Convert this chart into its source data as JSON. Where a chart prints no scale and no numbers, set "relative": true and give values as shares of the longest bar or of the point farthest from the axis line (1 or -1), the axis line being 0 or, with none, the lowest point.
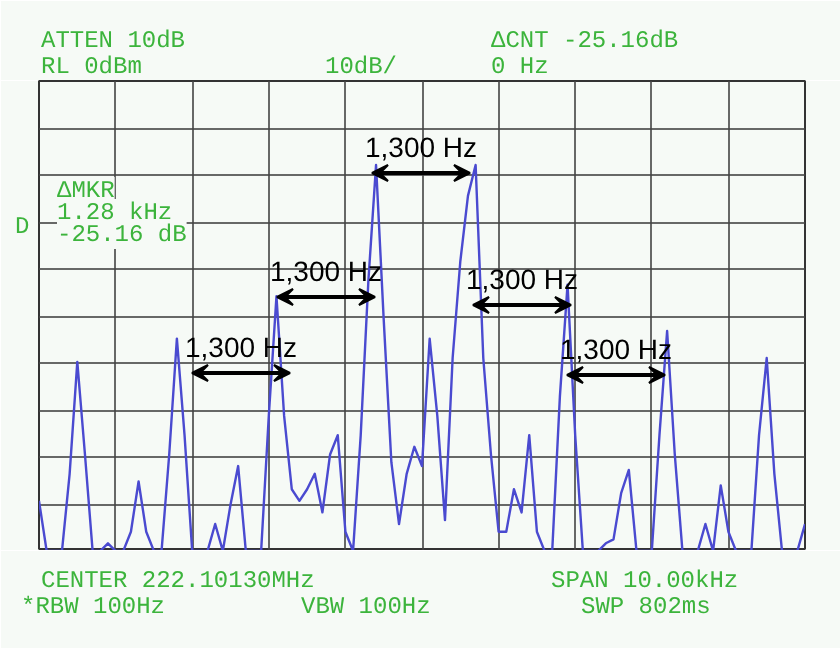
{
  "chart_data": {
    "type": "line",
    "relative": true,
    "tick_labels": false,
    "grid": true,
    "marker": "none",
    "line_style": "solid",
    "categories": [
      null,
      null,
      null,
      null,
      null,
      null,
      null,
      null,
      null,
      null,
      null,
      null,
      null,
      null,
      null,
      null,
      null,
      null,
      null,
      null,
      null,
      null,
      null,
      null,
      null,
      null,
      null,
      null,
      null,
      null,
      null,
      null,
      null,
      null,
      null,
      null,
      null,
      null,
      null,
      null,
      null,
      null,
      null,
      null,
      null,
      null,
      null,
      null,
      null,
      null,
      null,
      null,
      null,
      null,
      null,
      null,
      null,
      null,
      null,
      null,
      null,
      null,
      null,
      null,
      null,
      null,
      null,
      null,
      null,
      null,
      null,
      null,
      null,
      null,
      null,
      null,
      null,
      null,
      null,
      null,
      null,
      null,
      null,
      null,
      null,
      null,
      null,
      null,
      null,
      null,
      null,
      null,
      null,
      null,
      null,
      null,
      null,
      null,
      null,
      null,
      null
    ],
    "series": [
      {
        "color": "#4a4ad0",
        "values": [
          0.13,
          0,
          0,
          0,
          0.2,
          0.49,
          0.25,
          0,
          0,
          0.02,
          0,
          0,
          0.05,
          0.18,
          0.05,
          0,
          0,
          0.25,
          0.55,
          0.3,
          0,
          0,
          0,
          0.07,
          0,
          0.12,
          0.22,
          0,
          0,
          0,
          0.35,
          0.66,
          0.35,
          0.16,
          0.13,
          0.16,
          0.2,
          0.1,
          0.25,
          0.3,
          0.05,
          0,
          0.3,
          0.7,
          1.0,
          0.6,
          0.23,
          0.07,
          0.2,
          0.27,
          0.22,
          0.55,
          0.35,
          0.08,
          0.5,
          0.75,
          0.92,
          1.0,
          0.5,
          0.25,
          0.05,
          0.05,
          0.16,
          0.1,
          0.3,
          0.05,
          0,
          0,
          0.4,
          0.69,
          0.3,
          0,
          0,
          0,
          0.02,
          0.03,
          0.15,
          0.21,
          0,
          0,
          0,
          0.3,
          0.57,
          0.25,
          0,
          0,
          0,
          0.07,
          0,
          0.17,
          0.05,
          0,
          0,
          0,
          0.3,
          0.5,
          0.2,
          0,
          0,
          0,
          0.07
        ]
      }
    ],
    "annotations": [
      "ATTEN 10dB",
      "RL 0dBm",
      "10dB/",
      "ΔCNT -25.16dB",
      "0 Hz",
      "ΔMKR",
      "1.28 kHz",
      "-25.16 dB",
      "D",
      "CENTER 222.10130MHz",
      "SPAN 10.00kHz",
      "*RBW 100Hz",
      "VBW 100Hz",
      "SWP 802ms",
      "1,300 Hz",
      "1,300 Hz",
      "1,300 Hz",
      "1,300 Hz",
      "1,300 Hz"
    ]
  }
}
